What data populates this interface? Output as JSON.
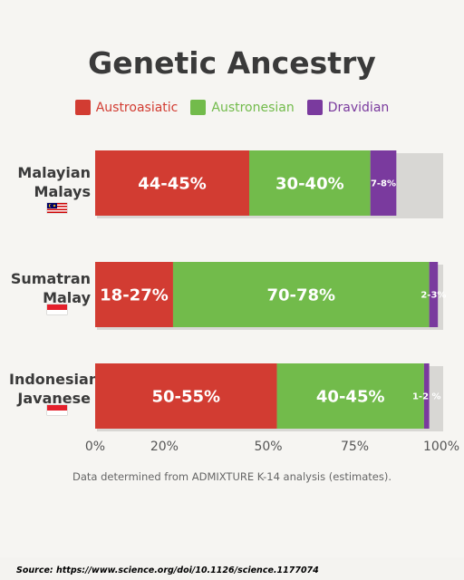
{
  "chart_data": {
    "type": "bar",
    "orientation": "horizontal",
    "stacked": true,
    "title": "Genetic Ancestry",
    "categories": [
      "Malayian Malays",
      "Sumatran Malay",
      "Indonesian Javanese"
    ],
    "category_lines": [
      [
        "Malayian",
        "Malays"
      ],
      [
        "Sumatran",
        "Malay"
      ],
      [
        "Indonesian",
        "Javanese"
      ]
    ],
    "series": [
      {
        "name": "Austroasiatic",
        "color": "#d23c32",
        "values": [
          44.5,
          22.5,
          52.5
        ],
        "labels": [
          "44-45%",
          "18-27%",
          "50-55%"
        ]
      },
      {
        "name": "Austronesian",
        "color": "#72bb4b",
        "values": [
          35,
          74,
          42.5
        ],
        "labels": [
          "30-40%",
          "70-78%",
          "40-45%"
        ]
      },
      {
        "name": "Dravidian",
        "color": "#7a3a9e",
        "values": [
          7.5,
          2.5,
          1.5
        ],
        "labels": [
          "7-8%",
          "2-3%",
          "1-2 %"
        ]
      }
    ],
    "xlim": [
      0,
      100
    ],
    "x_ticks": [
      0,
      20,
      50,
      75,
      100
    ],
    "x_tick_labels": [
      "0%",
      "20%",
      "50%",
      "75%",
      "100%"
    ],
    "legend": "top-center",
    "grid": false
  },
  "flags": [
    "malaysia-flag",
    "indonesia-flag",
    "indonesia-flag"
  ],
  "note": "Data determined from ADMIXTURE K-14 analysis (estimates).",
  "source": "Source:  https://www.science.org/doi/10.1126/science.1177074"
}
